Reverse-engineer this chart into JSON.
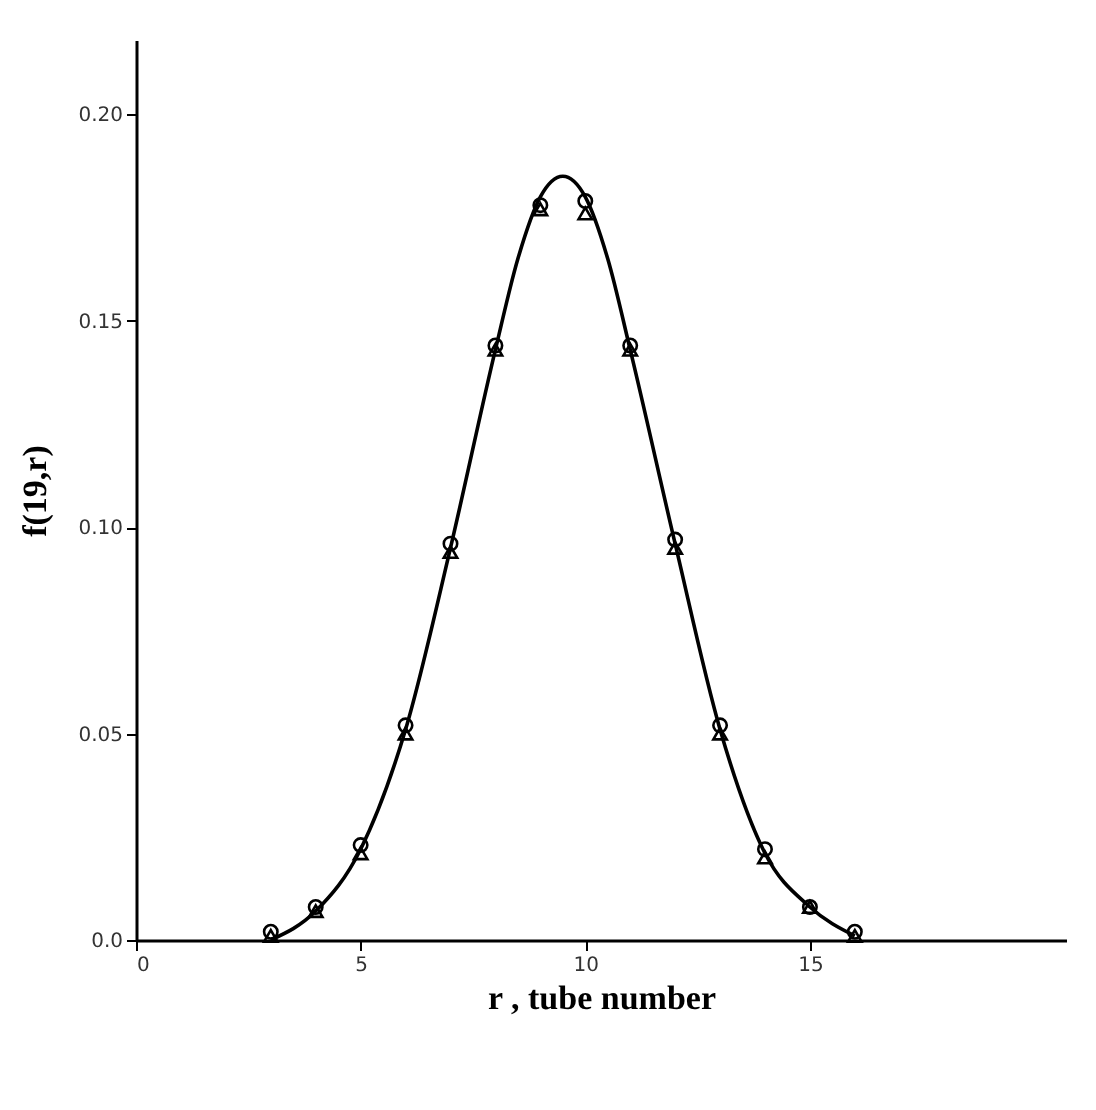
{
  "chart_data": {
    "type": "scatter",
    "xlabel": "r , tube number",
    "ylabel": "f(19,r)",
    "x": [
      3,
      4,
      5,
      6,
      7,
      8,
      9,
      10,
      11,
      12,
      13,
      14,
      15,
      16
    ],
    "series": [
      {
        "color": "#000000",
        "marker": "circle",
        "values": [
          0.002,
          0.008,
          0.023,
          0.052,
          0.096,
          0.144,
          0.178,
          0.179,
          0.144,
          0.097,
          0.052,
          0.022,
          0.008,
          0.002
        ]
      },
      {
        "color": "#000000",
        "marker": "triangle",
        "values": [
          0.001,
          0.007,
          0.021,
          0.05,
          0.094,
          0.143,
          0.177,
          0.176,
          0.143,
          0.095,
          0.05,
          0.02,
          0.008,
          0.001
        ]
      },
      {
        "type": "line",
        "color": "#000000",
        "marker": "none",
        "x": [
          3,
          4,
          5,
          6,
          7,
          8,
          8.5,
          9,
          9.5,
          10,
          10.5,
          11,
          12,
          13,
          14,
          15,
          16
        ],
        "values": [
          0,
          0.007,
          0.022,
          0.051,
          0.095,
          0.143,
          0.165,
          0.18,
          0.185,
          0.18,
          0.165,
          0.143,
          0.096,
          0.051,
          0.021,
          0.008,
          0.001
        ]
      }
    ],
    "xlim": [
      0,
      20.7
    ],
    "xticks": [
      0,
      5,
      10,
      15
    ],
    "ylim": [
      0,
      0.218
    ],
    "yticks": [
      {
        "value": 0,
        "label": "0.0"
      },
      {
        "value": 0.05,
        "label": "0.05"
      },
      {
        "value": 0.1,
        "label": "0.10"
      },
      {
        "value": 0.15,
        "label": "0.15"
      },
      {
        "value": 0.2,
        "label": "0.20"
      }
    ],
    "grid": false
  }
}
